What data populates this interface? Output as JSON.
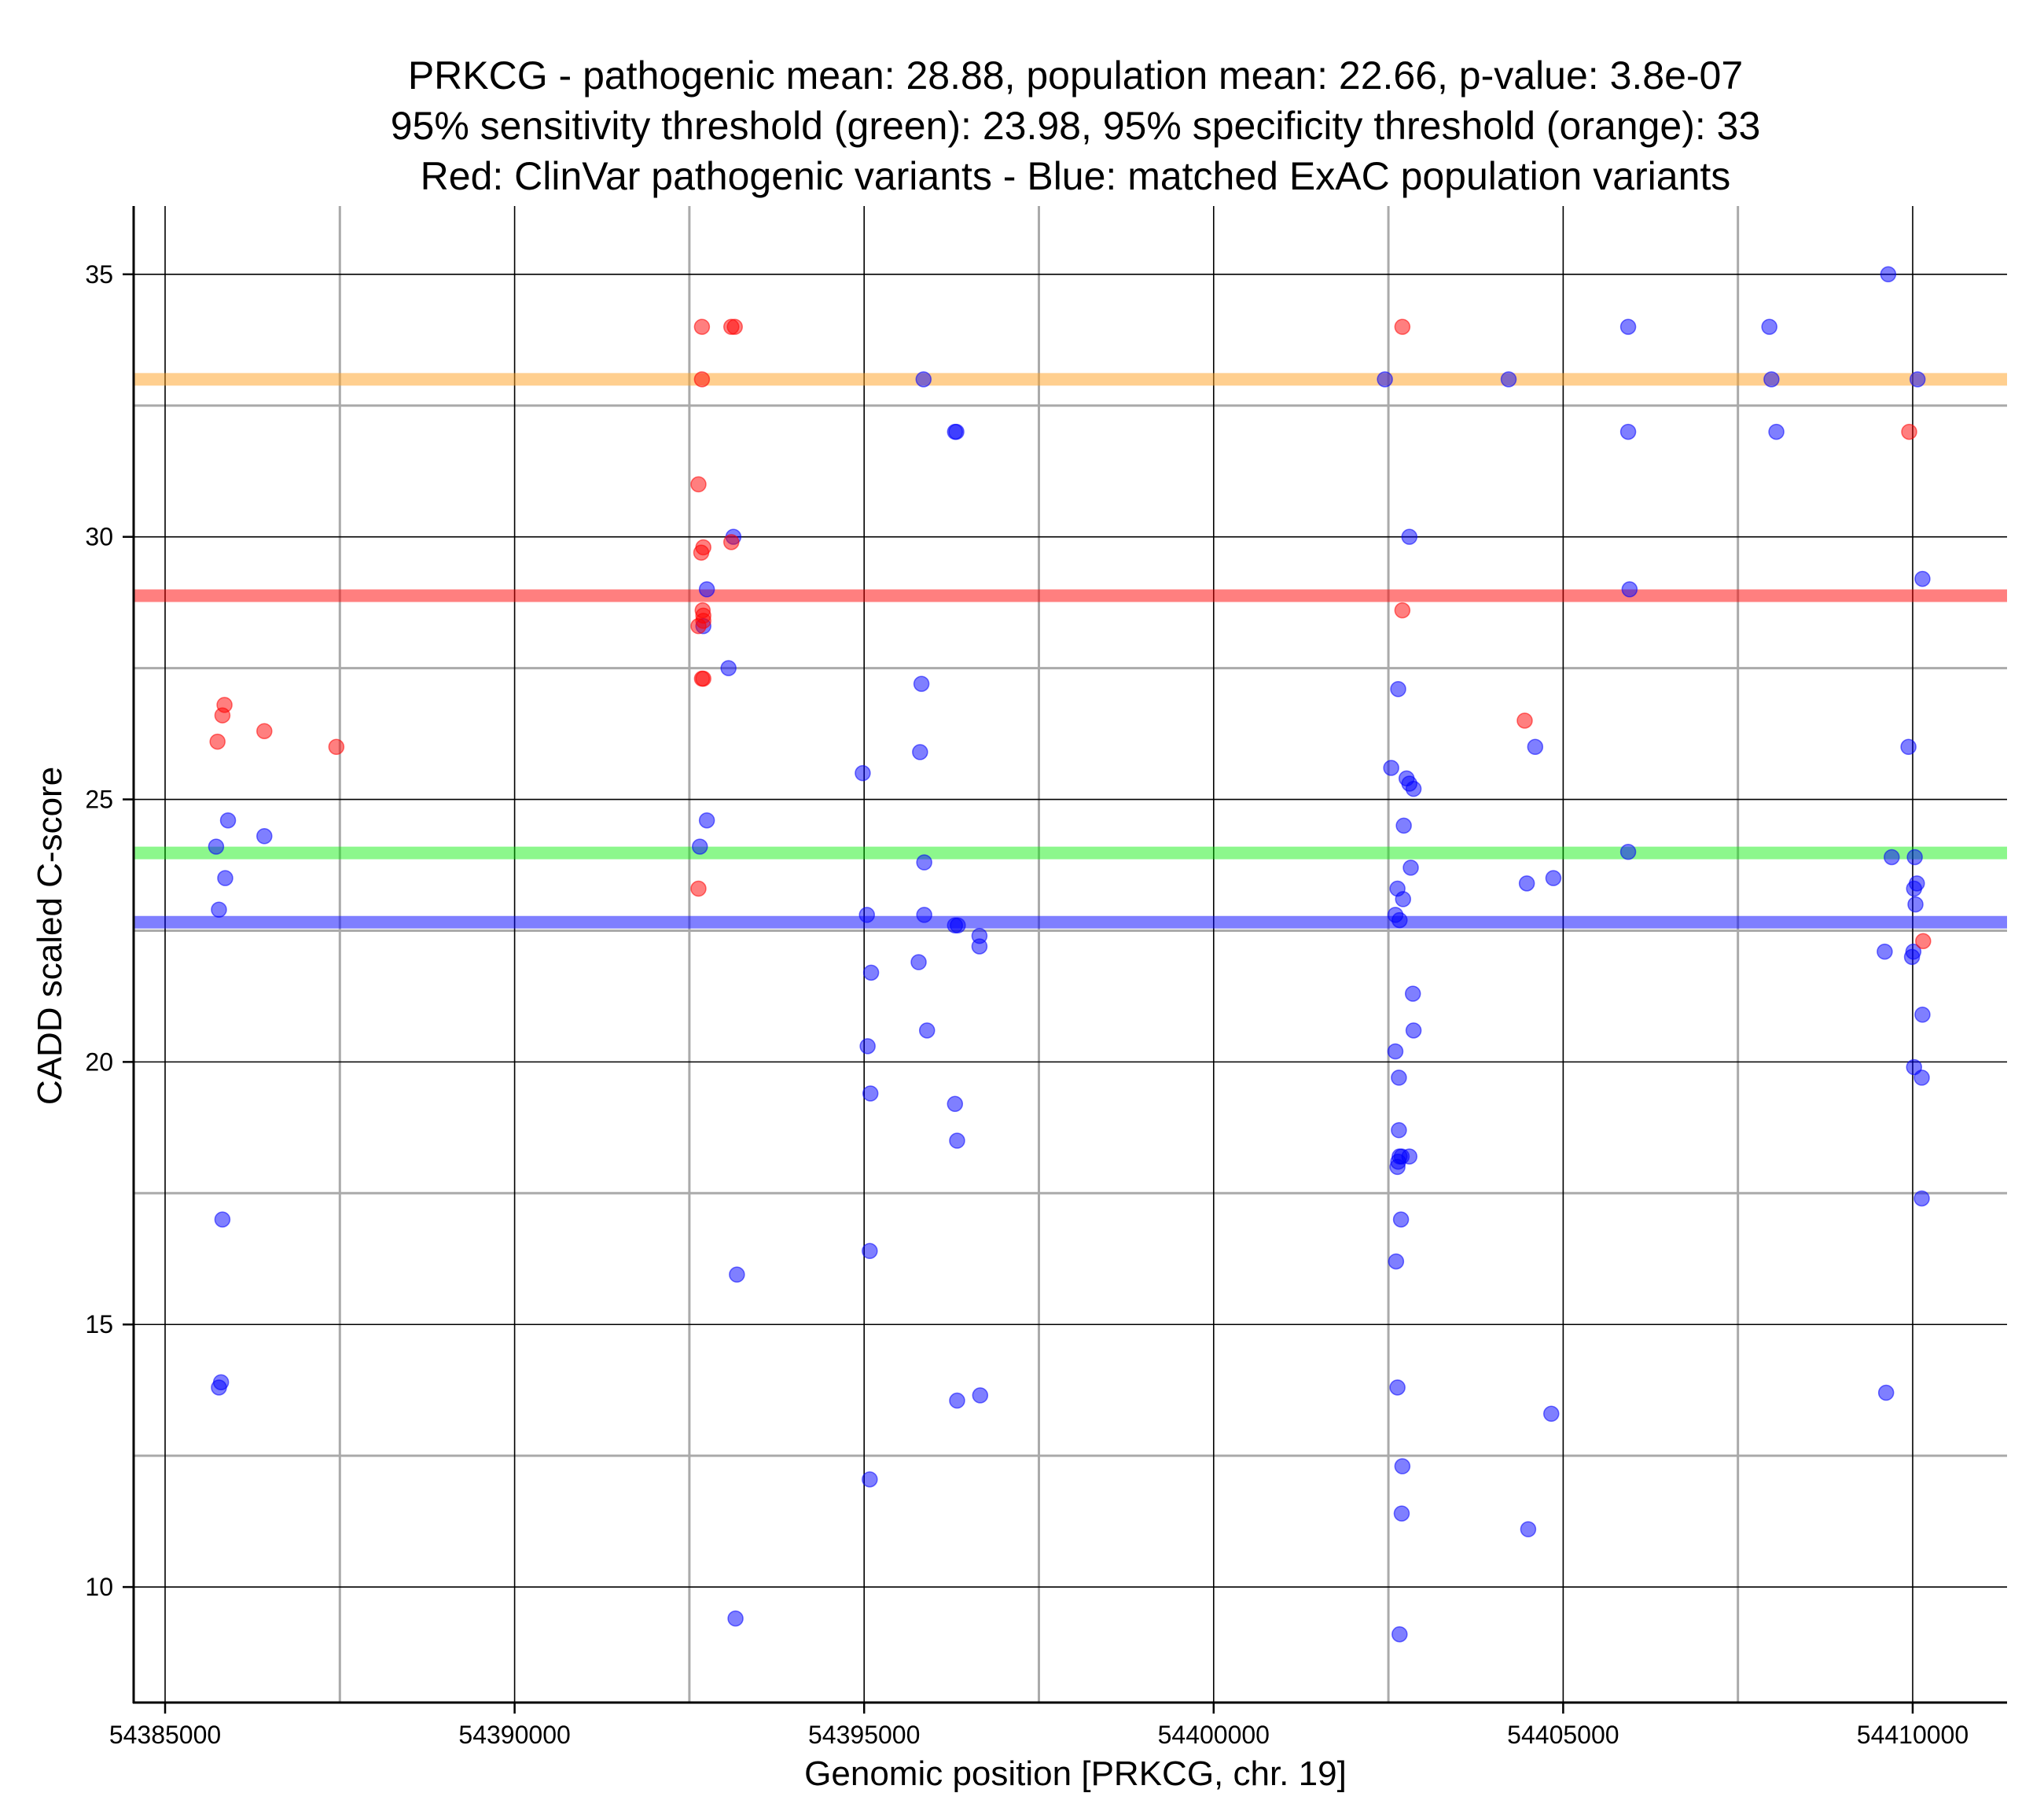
{
  "chart_data": {
    "type": "scatter",
    "title_lines": [
      "PRKCG - pathogenic mean: 28.88, population mean: 22.66, p-value: 3.8e-07",
      "95% sensitivity threshold (green): 23.98, 95% specificity threshold (orange): 33",
      "Red: ClinVar pathogenic variants - Blue: matched ExAC population variants"
    ],
    "xlabel": "Genomic position [PRKCG, chr. 19]",
    "ylabel": "CADD scaled C-score",
    "xlim": [
      54384550,
      54411350
    ],
    "ylim": [
      7.8,
      36.3
    ],
    "x_ticks": [
      54385000,
      54390000,
      54395000,
      54400000,
      54405000,
      54410000
    ],
    "x_tick_labels": [
      "54385000",
      "54390000",
      "54395000",
      "54400000",
      "54405000",
      "54410000"
    ],
    "y_ticks": [
      10,
      15,
      20,
      25,
      30,
      35
    ],
    "y_tick_labels": [
      "10",
      "15",
      "20",
      "25",
      "30",
      "35"
    ],
    "x_minor_grid": [
      54387500,
      54392500,
      54397500,
      54402500,
      54407500
    ],
    "y_minor_grid": [
      12.5,
      17.5,
      22.5,
      27.5,
      32.5
    ],
    "colors": {
      "pathogenic": "#ff0000",
      "population": "#0000ff",
      "sensitivity": "#00ee00",
      "specificity": "#ffa020",
      "pathogenic_mean": "#ff0000",
      "population_mean": "#0000ff",
      "grid_major": "#000000",
      "grid_minor": "#aaaaaa"
    },
    "hlines": [
      {
        "name": "specificity-threshold-line",
        "y": 33,
        "color": "#ffa020",
        "opacity": 0.5
      },
      {
        "name": "pathogenic-mean-line",
        "y": 28.88,
        "color": "#ff0000",
        "opacity": 0.5
      },
      {
        "name": "sensitivity-threshold-line",
        "y": 23.98,
        "color": "#00ee00",
        "opacity": 0.45
      },
      {
        "name": "population-mean-line",
        "y": 22.66,
        "color": "#0000ff",
        "opacity": 0.5
      }
    ],
    "series": [
      {
        "name": "ClinVar pathogenic variants",
        "color": "#ff0000",
        "points": [
          [
            54392680,
            34
          ],
          [
            54393100,
            34
          ],
          [
            54393150,
            34
          ],
          [
            54402700,
            34
          ],
          [
            54392680,
            33
          ],
          [
            54392630,
            31
          ],
          [
            54392700,
            29.8
          ],
          [
            54392670,
            29.7
          ],
          [
            54393100,
            29.9
          ],
          [
            54392690,
            28.6
          ],
          [
            54392700,
            28.5
          ],
          [
            54392700,
            28.4
          ],
          [
            54392630,
            28.3
          ],
          [
            54402700,
            28.6
          ],
          [
            54392700,
            27.3
          ],
          [
            54392680,
            27.3
          ],
          [
            54385850,
            26.8
          ],
          [
            54385820,
            26.6
          ],
          [
            54385750,
            26.1
          ],
          [
            54386420,
            26.3
          ],
          [
            54387450,
            26.0
          ],
          [
            54404450,
            26.5
          ],
          [
            54392630,
            23.3
          ],
          [
            54409950,
            32
          ],
          [
            54410150,
            22.3
          ]
        ]
      },
      {
        "name": "matched ExAC population variants",
        "color": "#0000ff",
        "points": [
          [
            54409650,
            35
          ],
          [
            54405930,
            34
          ],
          [
            54407950,
            34
          ],
          [
            54395850,
            33
          ],
          [
            54402450,
            33
          ],
          [
            54404220,
            33
          ],
          [
            54407980,
            33
          ],
          [
            54410070,
            33
          ],
          [
            54396300,
            32
          ],
          [
            54396320,
            32
          ],
          [
            54405930,
            32
          ],
          [
            54408050,
            32
          ],
          [
            54393130,
            30
          ],
          [
            54402800,
            30
          ],
          [
            54392750,
            29
          ],
          [
            54405950,
            29
          ],
          [
            54410140,
            29.2
          ],
          [
            54392700,
            28.3
          ],
          [
            54393060,
            27.5
          ],
          [
            54395820,
            27.2
          ],
          [
            54402640,
            27.1
          ],
          [
            54395800,
            25.9
          ],
          [
            54404600,
            26.0
          ],
          [
            54409940,
            26.0
          ],
          [
            54394980,
            25.5
          ],
          [
            54402540,
            25.6
          ],
          [
            54402760,
            25.4
          ],
          [
            54402800,
            25.3
          ],
          [
            54402860,
            25.2
          ],
          [
            54385900,
            24.6
          ],
          [
            54392750,
            24.6
          ],
          [
            54386420,
            24.3
          ],
          [
            54402720,
            24.5
          ],
          [
            54385730,
            24.1
          ],
          [
            54392650,
            24.1
          ],
          [
            54405930,
            24.0
          ],
          [
            54409700,
            23.9
          ],
          [
            54410030,
            23.9
          ],
          [
            54395860,
            23.8
          ],
          [
            54402820,
            23.7
          ],
          [
            54385860,
            23.5
          ],
          [
            54404480,
            23.4
          ],
          [
            54404860,
            23.5
          ],
          [
            54402630,
            23.3
          ],
          [
            54402710,
            23.1
          ],
          [
            54410020,
            23.3
          ],
          [
            54410060,
            23.4
          ],
          [
            54410040,
            23.0
          ],
          [
            54385770,
            22.9
          ],
          [
            54395040,
            22.8
          ],
          [
            54395860,
            22.8
          ],
          [
            54402600,
            22.8
          ],
          [
            54402660,
            22.7
          ],
          [
            54396300,
            22.6
          ],
          [
            54396340,
            22.6
          ],
          [
            54396650,
            22.4
          ],
          [
            54396650,
            22.2
          ],
          [
            54409600,
            22.1
          ],
          [
            54409990,
            22.0
          ],
          [
            54410010,
            22.1
          ],
          [
            54395100,
            21.7
          ],
          [
            54395780,
            21.9
          ],
          [
            54402850,
            21.3
          ],
          [
            54402860,
            20.6
          ],
          [
            54395900,
            20.6
          ],
          [
            54395050,
            20.3
          ],
          [
            54402600,
            20.2
          ],
          [
            54395090,
            19.4
          ],
          [
            54396300,
            19.2
          ],
          [
            54402650,
            19.7
          ],
          [
            54410140,
            20.9
          ],
          [
            54410020,
            19.9
          ],
          [
            54410130,
            19.7
          ],
          [
            54402650,
            18.7
          ],
          [
            54402660,
            18.2
          ],
          [
            54402640,
            18.1
          ],
          [
            54402690,
            18.2
          ],
          [
            54402630,
            18.0
          ],
          [
            54396330,
            18.5
          ],
          [
            54402800,
            18.2
          ],
          [
            54410130,
            17.4
          ],
          [
            54385820,
            17.0
          ],
          [
            54402680,
            17.0
          ],
          [
            54402610,
            16.2
          ],
          [
            54393180,
            15.95
          ],
          [
            54395080,
            16.4
          ],
          [
            54385800,
            13.9
          ],
          [
            54385770,
            13.8
          ],
          [
            54402630,
            13.8
          ],
          [
            54396330,
            13.55
          ],
          [
            54396660,
            13.65
          ],
          [
            54409620,
            13.7
          ],
          [
            54404830,
            13.3
          ],
          [
            54402700,
            12.3
          ],
          [
            54395080,
            12.05
          ],
          [
            54402690,
            11.4
          ],
          [
            54404500,
            11.1
          ],
          [
            54393160,
            9.4
          ],
          [
            54402660,
            9.1
          ]
        ]
      }
    ]
  }
}
